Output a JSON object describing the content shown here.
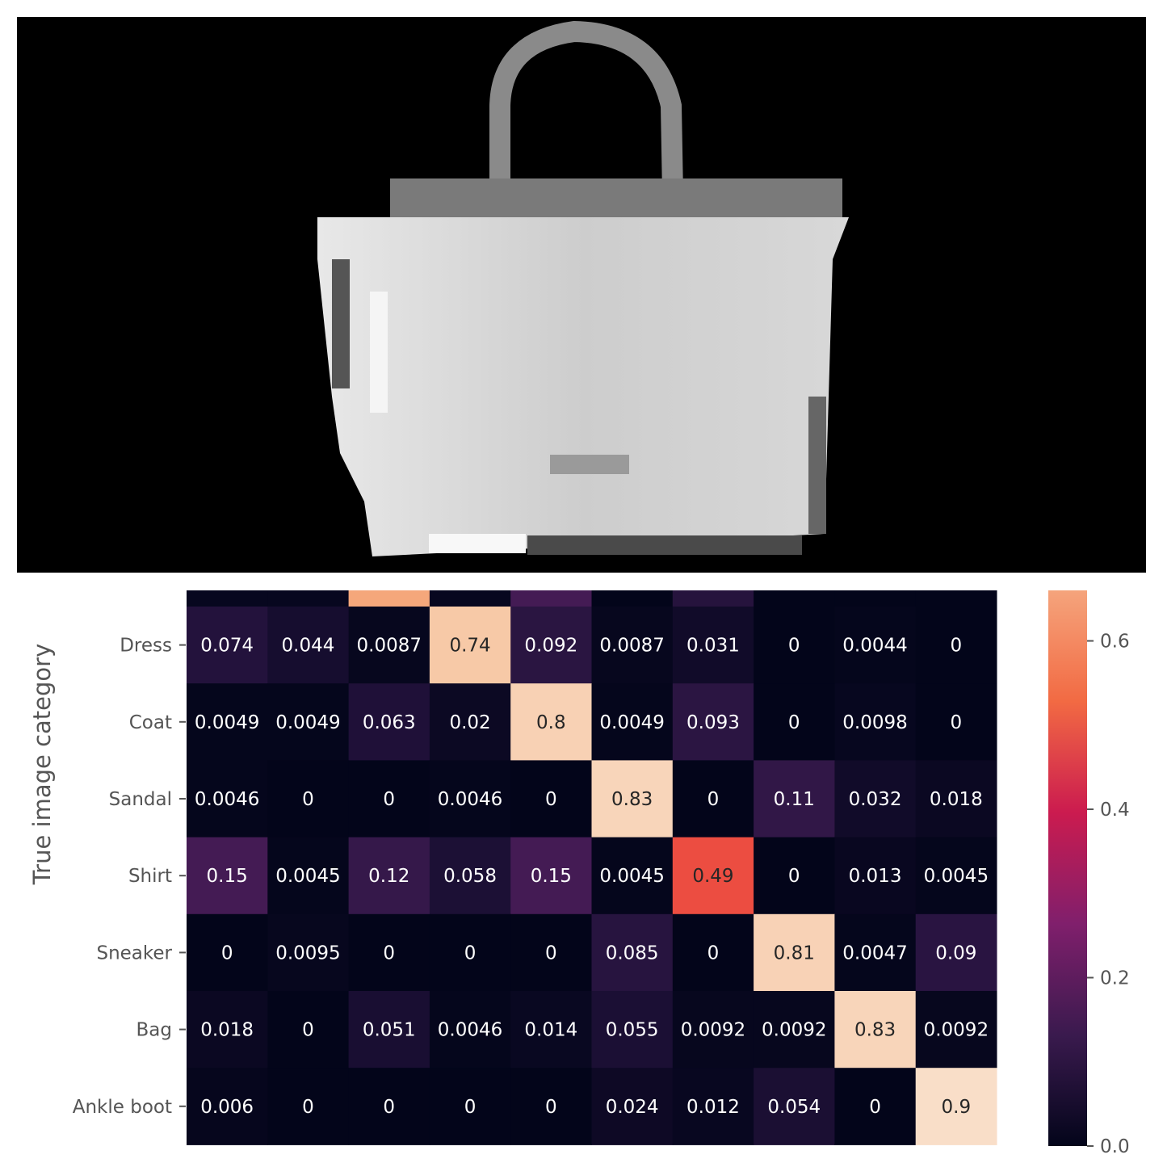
{
  "image": {
    "subject": "handbag-icon",
    "colors": {
      "background": "#000000",
      "body": "#cfcfcf",
      "highlight": "#f2f2f2",
      "shadow": "#3a3a3a"
    }
  },
  "chart_data": {
    "type": "heatmap",
    "ylabel": "True image category",
    "rows": [
      "Dress",
      "Coat",
      "Sandal",
      "Shirt",
      "Sneaker",
      "Bag",
      "Ankle boot"
    ],
    "n_columns": 10,
    "partial_top_row": [
      0.01,
      0.01,
      0.62,
      0.01,
      0.15,
      0.0,
      0.08,
      0.0,
      0.0,
      0.0
    ],
    "values": [
      [
        "0.074",
        "0.044",
        "0.0087",
        "0.74",
        "0.092",
        "0.0087",
        "0.031",
        "0",
        "0.0044",
        "0"
      ],
      [
        "0.0049",
        "0.0049",
        "0.063",
        "0.02",
        "0.8",
        "0.0049",
        "0.093",
        "0",
        "0.0098",
        "0"
      ],
      [
        "0.0046",
        "0",
        "0",
        "0.0046",
        "0",
        "0.83",
        "0",
        "0.11",
        "0.032",
        "0.018"
      ],
      [
        "0.15",
        "0.0045",
        "0.12",
        "0.058",
        "0.15",
        "0.0045",
        "0.49",
        "0",
        "0.013",
        "0.0045"
      ],
      [
        "0",
        "0.0095",
        "0",
        "0",
        "0",
        "0.085",
        "0",
        "0.81",
        "0.0047",
        "0.09"
      ],
      [
        "0.018",
        "0",
        "0.051",
        "0.0046",
        "0.014",
        "0.055",
        "0.0092",
        "0.0092",
        "0.83",
        "0.0092"
      ],
      [
        "0.006",
        "0",
        "0",
        "0",
        "0",
        "0.024",
        "0.012",
        "0.054",
        "0",
        "0.9"
      ]
    ],
    "colorbar": {
      "colormap": "rocket",
      "range": [
        0,
        0.66
      ],
      "ticks": [
        0.6,
        0.4,
        0.2,
        0.0
      ],
      "tick_labels": [
        "0.6",
        "0.4",
        "0.2",
        "0.0"
      ]
    }
  }
}
